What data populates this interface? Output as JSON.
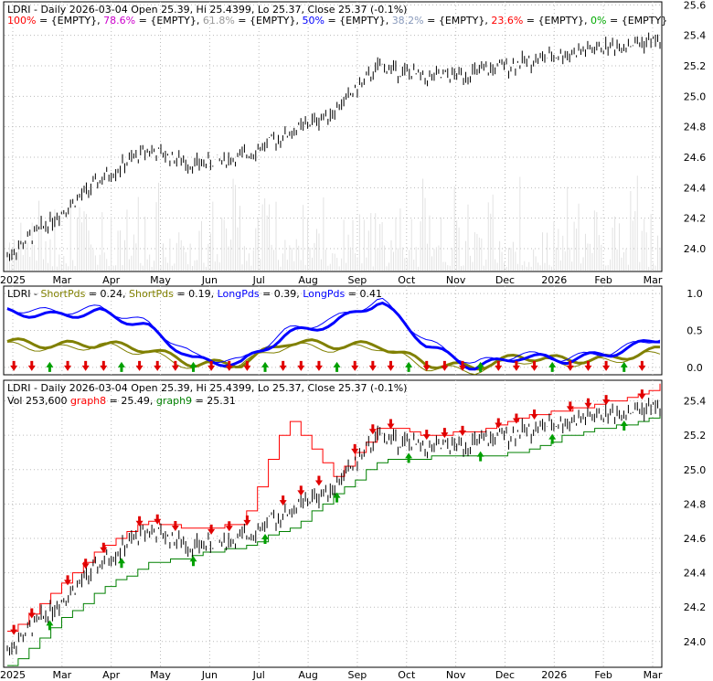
{
  "panels": {
    "price": {
      "title_prefix": "LDRI - Daily 2026-03-04 Open 25.39, Hi 25.4399, Lo 25.37, Close 25.37 (-0.1%)",
      "fib": [
        {
          "label": "100%",
          "value": "{EMPTY}",
          "color": "#ff0000"
        },
        {
          "label": "78.6%",
          "value": "{EMPTY}",
          "color": "#cc00cc"
        },
        {
          "label": "61.8%",
          "value": "{EMPTY}",
          "color": "#999999"
        },
        {
          "label": "50%",
          "value": "{EMPTY}",
          "color": "#0000ff"
        },
        {
          "label": "38.2%",
          "value": "{EMPTY}",
          "color": "#8899bb"
        },
        {
          "label": "23.6%",
          "value": "{EMPTY}",
          "color": "#ff0000"
        },
        {
          "label": "0%",
          "value": "{EMPTY}",
          "color": "#00aa00"
        }
      ]
    },
    "osc": {
      "parts": [
        {
          "text": "LDRI - ",
          "color": "#000000"
        },
        {
          "text": "ShortPds",
          "color": "#808000"
        },
        {
          "text": " = 0.24, ",
          "color": "#000000"
        },
        {
          "text": "ShortPds",
          "color": "#808000"
        },
        {
          "text": " = 0.19, ",
          "color": "#000000"
        },
        {
          "text": "LongPds",
          "color": "#0000ff"
        },
        {
          "text": " = 0.39, ",
          "color": "#000000"
        },
        {
          "text": "LongPds",
          "color": "#0000ff"
        },
        {
          "text": " = 0.41",
          "color": "#000000"
        }
      ]
    },
    "lower": {
      "title": "LDRI - Daily 2026-03-04 Open 25.39, Hi 25.4399, Lo 25.37, Close 25.37 (-0.1%)",
      "vol_parts": [
        {
          "text": "Vol 253,600 ",
          "color": "#000000"
        },
        {
          "text": "graph8",
          "color": "#ff0000"
        },
        {
          "text": " = 25.49, ",
          "color": "#000000"
        },
        {
          "text": "graph9",
          "color": "#008000"
        },
        {
          "text": " = 25.31",
          "color": "#000000"
        }
      ]
    }
  },
  "x_labels": [
    "2025",
    "Mar",
    "Apr",
    "May",
    "Jun",
    "Jul",
    "Aug",
    "Sep",
    "Oct",
    "Nov",
    "Dec",
    "2026",
    "Feb",
    "Mar"
  ],
  "y_ticks_price": [
    "25.6",
    "25.4",
    "25.2",
    "25.0",
    "24.8",
    "24.6",
    "24.4",
    "24.2",
    "24.0"
  ],
  "y_ticks_osc": [
    "1.0",
    "0.5",
    "0.0"
  ],
  "y_ticks_lower": [
    "25.4",
    "25.2",
    "25.0",
    "24.8",
    "24.6",
    "24.4",
    "24.2",
    "24.0"
  ],
  "chart_data": [
    {
      "type": "line",
      "title": "LDRI - Daily 2026-03-04 Open 25.39, Hi 25.4399, Lo 25.37, Close 25.37 (-0.1%)",
      "x": [
        "2025-01",
        "2025-02",
        "2025-03",
        "2025-04",
        "2025-05",
        "2025-06",
        "2025-07",
        "2025-08",
        "2025-09",
        "2025-10",
        "2025-11",
        "2025-12",
        "2026-01",
        "2026-02",
        "2026-03"
      ],
      "series": [
        {
          "name": "Close",
          "values": [
            23.95,
            24.2,
            24.45,
            24.65,
            24.55,
            24.6,
            24.75,
            24.9,
            25.2,
            25.12,
            25.15,
            25.22,
            25.28,
            25.33,
            25.37
          ]
        }
      ],
      "ylim": [
        23.85,
        25.62
      ],
      "grid": true
    },
    {
      "type": "line",
      "x": [
        "2025-01",
        "2025-02",
        "2025-03",
        "2025-04",
        "2025-05",
        "2025-06",
        "2025-07",
        "2025-08",
        "2025-09",
        "2025-10",
        "2025-11",
        "2025-12",
        "2026-01",
        "2026-02",
        "2026-03"
      ],
      "series": [
        {
          "name": "ShortPds",
          "values": [
            0.35,
            0.3,
            0.32,
            0.25,
            0.05,
            0.05,
            0.35,
            0.3,
            0.3,
            0.05,
            0.0,
            0.15,
            0.1,
            0.12,
            0.24
          ]
        },
        {
          "name": "ShortPds",
          "values": [
            0.3,
            0.25,
            0.3,
            0.2,
            0.0,
            0.05,
            0.3,
            0.25,
            0.28,
            0.0,
            -0.05,
            0.1,
            0.05,
            0.1,
            0.19
          ]
        },
        {
          "name": "LongPds",
          "values": [
            0.75,
            0.7,
            0.75,
            0.55,
            0.1,
            0.05,
            0.45,
            0.6,
            0.9,
            0.3,
            0.0,
            0.15,
            0.1,
            0.2,
            0.39
          ]
        },
        {
          "name": "LongPds",
          "values": [
            0.8,
            0.75,
            0.8,
            0.6,
            0.15,
            0.08,
            0.5,
            0.65,
            0.92,
            0.35,
            0.05,
            0.18,
            0.12,
            0.22,
            0.41
          ]
        }
      ],
      "ylim": [
        -0.1,
        1.1
      ]
    },
    {
      "type": "line",
      "title": "LDRI - Daily 2026-03-04 Open 25.39, Hi 25.4399, Lo 25.37, Close 25.37 (-0.1%)",
      "x": [
        "2025-01",
        "2025-02",
        "2025-03",
        "2025-04",
        "2025-05",
        "2025-06",
        "2025-07",
        "2025-08",
        "2025-09",
        "2025-10",
        "2025-11",
        "2025-12",
        "2026-01",
        "2026-02",
        "2026-03"
      ],
      "series": [
        {
          "name": "graph8",
          "values": [
            24.05,
            24.3,
            24.55,
            24.7,
            24.65,
            24.68,
            25.3,
            24.95,
            25.25,
            25.2,
            25.22,
            25.3,
            25.35,
            25.4,
            25.49
          ]
        },
        {
          "name": "graph9",
          "values": [
            23.85,
            24.1,
            24.3,
            24.45,
            24.5,
            24.55,
            24.65,
            24.85,
            25.05,
            25.07,
            25.07,
            25.1,
            25.2,
            25.25,
            25.31
          ]
        }
      ],
      "ylim": [
        23.85,
        25.52
      ]
    }
  ]
}
